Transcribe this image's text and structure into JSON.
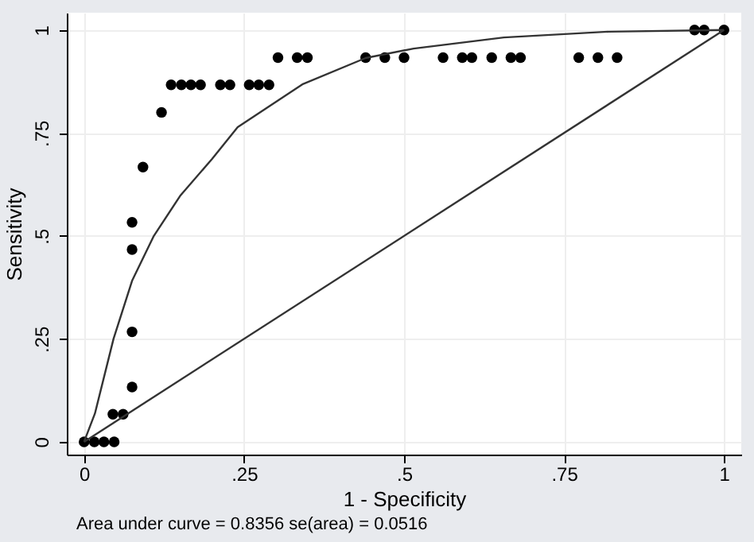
{
  "chart_data": {
    "type": "scatter",
    "xlabel": "1 - Specificity",
    "ylabel": "Sensitivity",
    "annotations": [
      "Area under curve = 0.8356  se(area) = 0.0516"
    ],
    "xlim": [
      -0.027,
      1.027
    ],
    "ylim": [
      -0.031,
      1.042
    ],
    "xticks": [
      0,
      {
        "value": 0.25,
        "label": ".25"
      },
      {
        "value": 0.5,
        "label": ".5"
      },
      {
        "value": 0.75,
        "label": ".75"
      },
      1
    ],
    "yticks": [
      0,
      {
        "value": 0.25,
        "label": ".25"
      },
      {
        "value": 0.5,
        "label": ".5"
      },
      {
        "value": 0.75,
        "label": ".75"
      },
      1
    ],
    "grid": true,
    "legend": false,
    "series": [
      {
        "marker": "circle",
        "color": "#000000",
        "x": [
          0,
          0.016,
          0.031,
          0.047,
          0.045,
          0.061,
          0.075,
          0.075,
          0.075,
          0.075,
          0.092,
          0.121,
          0.136,
          0.152,
          0.167,
          0.182,
          0.213,
          0.228,
          0.258,
          0.273,
          0.289,
          0.303,
          0.333,
          0.349,
          0.44,
          0.47,
          0.5,
          0.561,
          0.591,
          0.606,
          0.637,
          0.667,
          0.682,
          0.773,
          0.803,
          0.833,
          0.954,
          0.969,
          1.0
        ],
        "values": [
          0,
          0,
          0,
          0,
          0.067,
          0.067,
          0.133,
          0.267,
          0.467,
          0.533,
          0.667,
          0.8,
          0.867,
          0.867,
          0.867,
          0.867,
          0.867,
          0.867,
          0.867,
          0.867,
          0.867,
          0.933,
          0.933,
          0.933,
          0.933,
          0.933,
          0.933,
          0.933,
          0.933,
          0.933,
          0.933,
          0.933,
          0.933,
          0.933,
          0.933,
          0.933,
          1,
          1,
          1
        ]
      },
      {
        "type": "line",
        "marker": "none",
        "line_style": "solid",
        "color": "#333333",
        "x": [
          0,
          0.017,
          0.046,
          0.075,
          0.109,
          0.15,
          0.2,
          0.24,
          0.341,
          0.44,
          0.515,
          0.656,
          0.82,
          1
        ],
        "values": [
          0,
          0.069,
          0.25,
          0.391,
          0.5,
          0.597,
          0.687,
          0.764,
          0.868,
          0.932,
          0.955,
          0.982,
          0.996,
          1
        ]
      },
      {
        "type": "line",
        "marker": "none",
        "line_style": "solid",
        "color": "#333333",
        "x": [
          0,
          1
        ],
        "values": [
          0,
          1
        ]
      }
    ]
  }
}
